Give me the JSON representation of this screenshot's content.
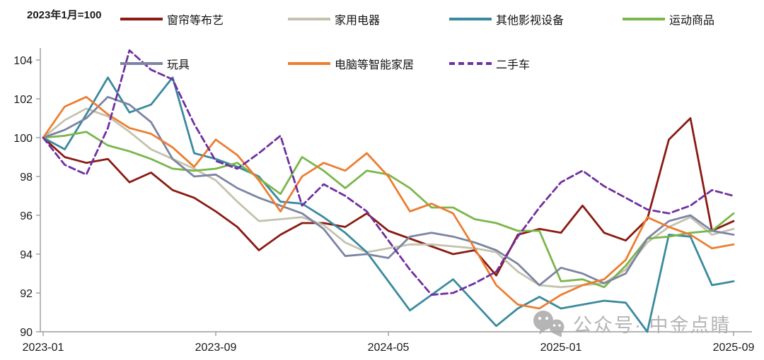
{
  "note": "2023年1月=100",
  "watermark": {
    "icon": "wechat-icon",
    "text": "公众号· 中金点睛"
  },
  "axis": {
    "yticks": [
      90,
      92,
      94,
      96,
      98,
      100,
      102,
      104
    ],
    "x_tick_labels": [
      "2023-01",
      "2023-09",
      "2024-05",
      "2025-01",
      "2025-09"
    ]
  },
  "chart_data": {
    "type": "line",
    "title": "",
    "xlabel": "",
    "ylabel": "",
    "ylim": [
      90,
      104.6
    ],
    "grid": false,
    "legend_position": "top",
    "x": [
      "2023-01",
      "2023-02",
      "2023-03",
      "2023-04",
      "2023-05",
      "2023-06",
      "2023-07",
      "2023-08",
      "2023-09",
      "2023-10",
      "2023-11",
      "2023-12",
      "2024-01",
      "2024-02",
      "2024-03",
      "2024-04",
      "2024-05",
      "2024-06",
      "2024-07",
      "2024-08",
      "2024-09",
      "2024-10",
      "2024-11",
      "2024-12",
      "2025-01",
      "2025-02",
      "2025-03",
      "2025-04",
      "2025-05",
      "2025-06",
      "2025-07",
      "2025-08",
      "2025-09"
    ],
    "series": [
      {
        "name": "窗帘等布艺",
        "color": "#8A1A12",
        "dash": null,
        "values": [
          100,
          99.0,
          98.7,
          98.9,
          97.7,
          98.2,
          97.3,
          96.9,
          96.2,
          95.4,
          94.2,
          95.0,
          95.6,
          95.6,
          95.4,
          96.1,
          95.2,
          94.8,
          94.4,
          94.0,
          94.2,
          92.9,
          95.0,
          95.3,
          95.1,
          96.5,
          95.1,
          94.7,
          95.8,
          99.9,
          101.0,
          95.2,
          95.7
        ]
      },
      {
        "name": "家用电器",
        "color": "#C4C2AE",
        "dash": null,
        "values": [
          100,
          100.9,
          101.5,
          101.1,
          100.3,
          99.4,
          98.9,
          98.4,
          97.8,
          96.7,
          95.7,
          95.8,
          95.9,
          95.5,
          94.6,
          94.1,
          94.3,
          94.5,
          94.5,
          94.4,
          94.3,
          94.1,
          93.1,
          92.4,
          92.3,
          92.4,
          92.5,
          93.2,
          94.6,
          95.4,
          95.9,
          95.0,
          95.3
        ]
      },
      {
        "name": "其他影视设备",
        "color": "#3A8A9E",
        "dash": null,
        "values": [
          100,
          99.4,
          101.2,
          103.1,
          101.3,
          101.7,
          103.1,
          99.2,
          98.9,
          98.5,
          98.0,
          96.7,
          96.6,
          95.9,
          95.1,
          94.1,
          92.6,
          91.1,
          91.9,
          92.7,
          91.5,
          90.3,
          91.2,
          91.8,
          91.2,
          91.4,
          91.6,
          91.5,
          90.0,
          95.0,
          94.9,
          92.4,
          92.6
        ]
      },
      {
        "name": "运动商品",
        "color": "#7AB64A",
        "dash": null,
        "values": [
          100,
          100.1,
          100.3,
          99.6,
          99.3,
          98.9,
          98.4,
          98.3,
          98.4,
          98.7,
          97.9,
          97.1,
          99.0,
          98.3,
          97.4,
          98.3,
          98.1,
          97.4,
          96.4,
          96.4,
          95.8,
          95.6,
          95.2,
          95.2,
          92.6,
          92.7,
          92.3,
          93.4,
          94.8,
          94.9,
          95.1,
          95.2,
          96.1
        ]
      },
      {
        "name": "玩具",
        "color": "#7C84A3",
        "dash": null,
        "values": [
          100,
          100.4,
          101.0,
          102.1,
          101.7,
          100.8,
          98.9,
          98.0,
          98.1,
          97.4,
          96.9,
          96.5,
          96.1,
          95.3,
          93.9,
          94.0,
          93.8,
          94.9,
          95.1,
          94.9,
          94.6,
          94.2,
          93.5,
          92.4,
          93.3,
          93.0,
          92.5,
          93.0,
          94.8,
          95.7,
          96.0,
          95.2,
          95.0
        ]
      },
      {
        "name": "电脑等智能家居",
        "color": "#ED7D31",
        "dash": null,
        "values": [
          100,
          101.6,
          102.1,
          101.2,
          100.5,
          100.2,
          99.5,
          98.5,
          99.9,
          99.1,
          97.8,
          96.2,
          98.0,
          98.7,
          98.3,
          99.2,
          98.0,
          96.2,
          96.6,
          96.1,
          94.3,
          92.4,
          91.4,
          91.2,
          91.9,
          92.4,
          92.7,
          93.7,
          95.9,
          95.4,
          95.0,
          94.3,
          94.5
        ]
      },
      {
        "name": "二手车",
        "color": "#7030A0",
        "dash": [
          9,
          5
        ],
        "values": [
          100,
          98.6,
          98.1,
          100.5,
          104.5,
          103.5,
          103.0,
          100.7,
          98.8,
          98.4,
          99.2,
          100.1,
          96.5,
          97.6,
          97.0,
          96.2,
          94.7,
          93.2,
          91.9,
          92.0,
          92.5,
          93.1,
          94.9,
          96.4,
          97.7,
          98.3,
          97.5,
          96.9,
          96.3,
          96.1,
          96.5,
          97.3,
          97.0
        ]
      }
    ]
  }
}
